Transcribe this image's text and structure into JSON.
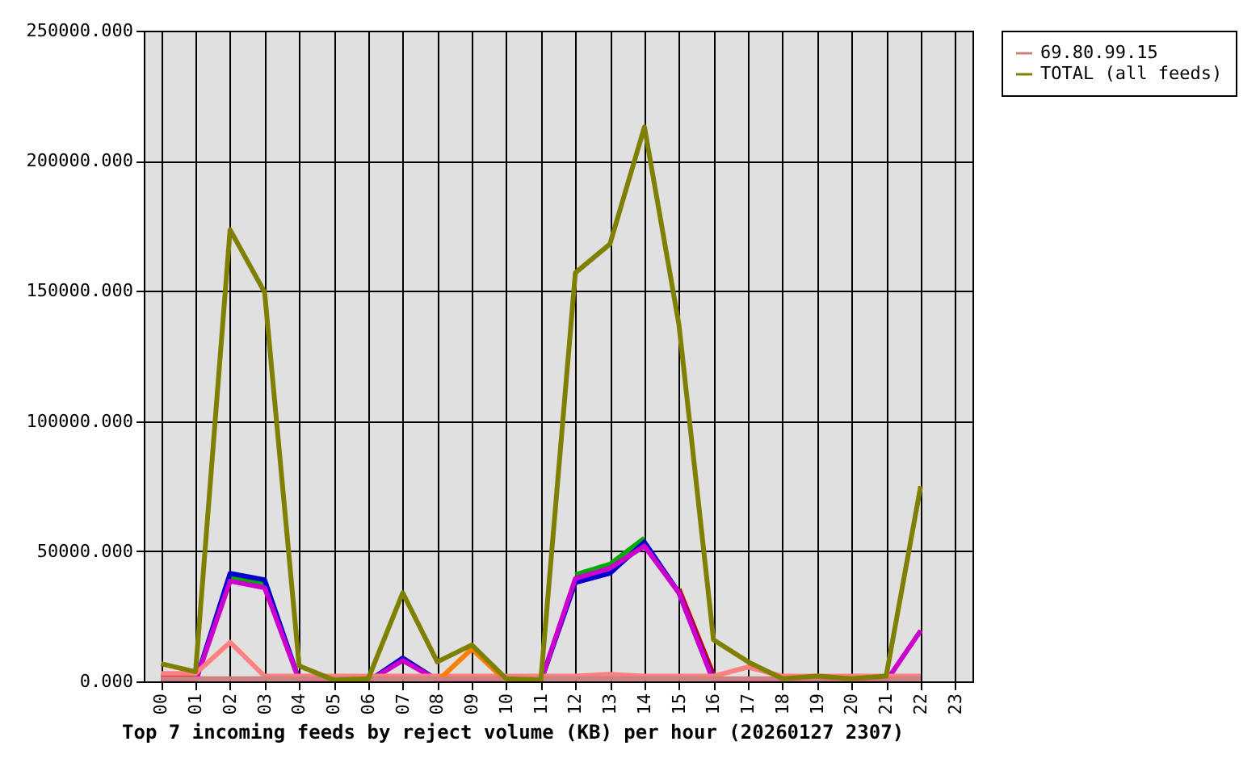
{
  "chart_data": {
    "type": "line",
    "xlabel": "Top 7 incoming feeds by reject volume (KB) per hour (20260127 2307)",
    "categories": [
      "00",
      "01",
      "02",
      "03",
      "04",
      "05",
      "06",
      "07",
      "08",
      "09",
      "10",
      "11",
      "12",
      "13",
      "14",
      "15",
      "16",
      "17",
      "18",
      "19",
      "20",
      "21",
      "22",
      "23"
    ],
    "series": [
      {
        "color": "#cc0000",
        "values": [
          2000,
          1500,
          null,
          null,
          null,
          null,
          null,
          null,
          null,
          null,
          null,
          null,
          null,
          null,
          null,
          35500,
          2500,
          null,
          null,
          null,
          null,
          null,
          null,
          null
        ]
      },
      {
        "color": "#00aa00",
        "values": [
          null,
          null,
          40000,
          37500,
          null,
          null,
          null,
          null,
          null,
          null,
          null,
          null,
          41000,
          45000,
          55000,
          null,
          null,
          null,
          null,
          null,
          null,
          null,
          null,
          null
        ]
      },
      {
        "color": "#0000cc",
        "values": [
          0,
          0,
          41500,
          39000,
          500,
          0,
          0,
          9000,
          500,
          0,
          0,
          0,
          38000,
          41500,
          53500,
          34000,
          500,
          null,
          null,
          null,
          null,
          null,
          null,
          null
        ]
      },
      {
        "color": "#cc00cc",
        "values": [
          0,
          0,
          38500,
          36000,
          500,
          0,
          0,
          8000,
          500,
          0,
          0,
          0,
          39500,
          43500,
          52000,
          34000,
          0,
          0,
          0,
          0,
          0,
          0,
          19500,
          null
        ]
      },
      {
        "color": "#ff8080",
        "values": [
          3000,
          3000,
          15000,
          2000,
          2000,
          2000,
          2000,
          2000,
          2000,
          2000,
          2000,
          2000,
          2000,
          2700,
          2000,
          2000,
          2000,
          5500,
          2000,
          2000,
          2000,
          2000,
          2000,
          null
        ]
      },
      {
        "color": "#ff8000",
        "values": [
          null,
          null,
          null,
          null,
          null,
          null,
          null,
          null,
          0,
          12500,
          0,
          null,
          null,
          null,
          null,
          null,
          null,
          null,
          null,
          null,
          null,
          null,
          null,
          null
        ]
      },
      {
        "name": "69.80.99.15",
        "color": "#cc8080",
        "values": [
          1000,
          1000,
          1000,
          1000,
          1000,
          1000,
          1000,
          1000,
          1000,
          1000,
          1000,
          1000,
          1000,
          1000,
          1000,
          1000,
          1000,
          1000,
          1000,
          1000,
          1000,
          1000,
          1000,
          null
        ]
      },
      {
        "name": "TOTAL (all feeds)",
        "color": "#808000",
        "values": [
          6800,
          3700,
          173500,
          149500,
          6000,
          500,
          1000,
          34000,
          7500,
          14000,
          1000,
          500,
          157000,
          168000,
          213000,
          137000,
          16000,
          7500,
          1000,
          2000,
          1000,
          2000,
          75000,
          null
        ]
      }
    ],
    "ylim": [
      0,
      250000
    ],
    "yticks": [
      {
        "value": 0,
        "label": "0.000"
      },
      {
        "value": 50000,
        "label": "50000.000"
      },
      {
        "value": 100000,
        "label": "100000.000"
      },
      {
        "value": 150000,
        "label": "150000.000"
      },
      {
        "value": 200000,
        "label": "200000.000"
      },
      {
        "value": 250000,
        "label": "250000.000"
      }
    ],
    "grid": true,
    "legend": "top right",
    "marker": "none",
    "line_style": "solid"
  }
}
